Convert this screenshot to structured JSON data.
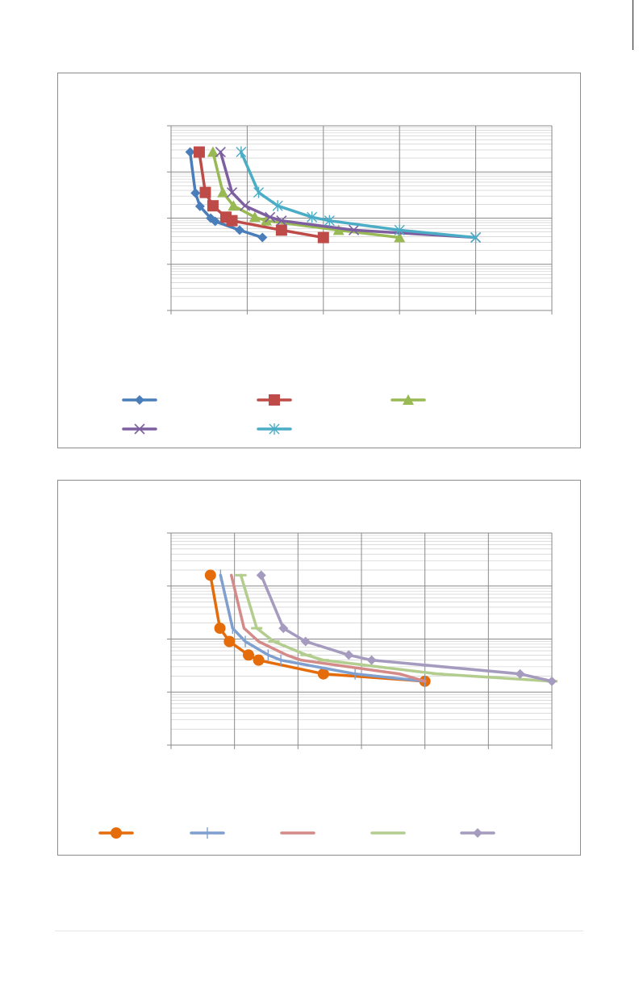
{
  "chart_data": [
    {
      "type": "line",
      "title": "",
      "xlabel": "",
      "ylabel": "",
      "xlim": [
        0,
        5
      ],
      "ylim": [
        1,
        10000
      ],
      "yscale": "log",
      "grid": true,
      "legend_position": "bottom",
      "series": [
        {
          "color": "#4a7ebb",
          "marker": "diamond",
          "x": [
            0.25,
            0.32,
            0.38,
            0.52,
            0.58,
            0.9,
            1.2
          ],
          "y": [
            2700,
            350,
            180,
            100,
            85,
            55,
            38
          ]
        },
        {
          "color": "#be4b48",
          "marker": "square",
          "x": [
            0.37,
            0.45,
            0.55,
            0.72,
            0.8,
            1.45,
            2.0
          ],
          "y": [
            2700,
            360,
            185,
            105,
            88,
            55,
            38
          ]
        },
        {
          "color": "#98b954",
          "marker": "triangle",
          "x": [
            0.55,
            0.68,
            0.82,
            1.1,
            1.25,
            2.2,
            3.0
          ],
          "y": [
            2700,
            360,
            185,
            105,
            88,
            55,
            38
          ]
        },
        {
          "color": "#7d5fa0",
          "marker": "x",
          "x": [
            0.65,
            0.8,
            0.97,
            1.3,
            1.45,
            2.4,
            4.0
          ],
          "y": [
            2700,
            360,
            185,
            105,
            88,
            55,
            38
          ]
        },
        {
          "color": "#4bacc6",
          "marker": "star",
          "x": [
            0.92,
            1.15,
            1.4,
            1.85,
            2.08,
            3.0,
            4.0
          ],
          "y": [
            2700,
            360,
            185,
            105,
            88,
            55,
            38
          ]
        }
      ]
    },
    {
      "type": "line",
      "title": "",
      "xlabel": "",
      "ylabel": "",
      "xlim": [
        0,
        6
      ],
      "ylim": [
        1,
        10000
      ],
      "yscale": "log",
      "grid": true,
      "legend_position": "bottom",
      "series": [
        {
          "color": "#e46c0a",
          "marker": "circle",
          "x": [
            0.62,
            0.77,
            0.92,
            1.22,
            1.38,
            2.4,
            4.0
          ],
          "y": [
            1600,
            160,
            90,
            50,
            40,
            22,
            16
          ]
        },
        {
          "color": "#7f9fcf",
          "marker": "plus",
          "x": [
            0.78,
            0.97,
            1.17,
            1.53,
            1.73,
            2.9,
            4.0
          ],
          "y": [
            1600,
            160,
            90,
            50,
            40,
            22,
            16
          ]
        },
        {
          "color": "#d48a88",
          "marker": "none",
          "x": [
            0.95,
            1.15,
            1.38,
            1.82,
            2.05,
            3.6,
            4.0
          ],
          "y": [
            1600,
            160,
            90,
            50,
            40,
            22,
            16
          ]
        },
        {
          "color": "#b3cd8f",
          "marker": "dash",
          "x": [
            1.1,
            1.35,
            1.62,
            2.13,
            2.4,
            4.2,
            6.0
          ],
          "y": [
            1600,
            160,
            90,
            50,
            40,
            22,
            16
          ]
        },
        {
          "color": "#a59bbf",
          "marker": "diamond",
          "x": [
            1.42,
            1.77,
            2.12,
            2.8,
            3.16,
            5.5,
            6.0
          ],
          "y": [
            1600,
            160,
            90,
            50,
            40,
            22,
            16
          ]
        }
      ]
    }
  ]
}
